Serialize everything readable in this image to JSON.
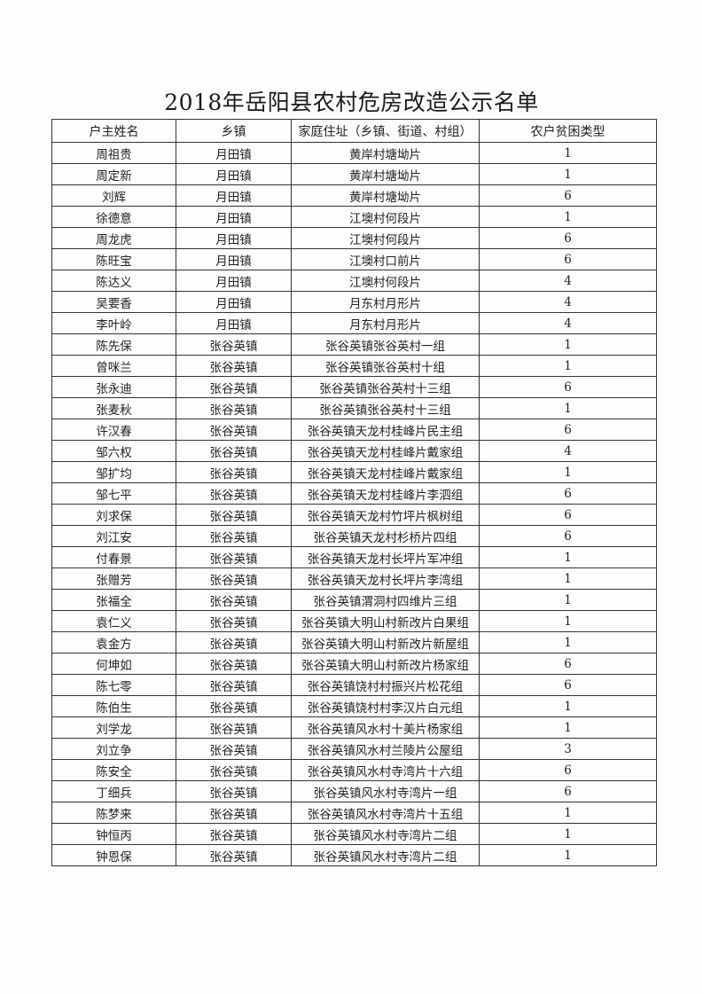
{
  "title": "2018年岳阳县农村危房改造公示名单",
  "table": {
    "headers": [
      "户主姓名",
      "乡镇",
      "家庭住址（乡镇、街道、村组）",
      "农户贫困类型"
    ],
    "rows": [
      [
        "周祖贵",
        "月田镇",
        "黄岸村塘坳片",
        "1"
      ],
      [
        "周定新",
        "月田镇",
        "黄岸村塘坳片",
        "1"
      ],
      [
        "刘辉",
        "月田镇",
        "黄岸村塘坳片",
        "6"
      ],
      [
        "徐德意",
        "月田镇",
        "江墺村何段片",
        "1"
      ],
      [
        "周龙虎",
        "月田镇",
        "江墺村何段片",
        "6"
      ],
      [
        "陈旺宝",
        "月田镇",
        "江墺村口前片",
        "6"
      ],
      [
        "陈达义",
        "月田镇",
        "江墺村何段片",
        "4"
      ],
      [
        "吴要香",
        "月田镇",
        "月东村月形片",
        "4"
      ],
      [
        "李叶岭",
        "月田镇",
        "月东村月形片",
        "4"
      ],
      [
        "陈先保",
        "张谷英镇",
        "张谷英镇张谷英村一组",
        "1"
      ],
      [
        "曾咪兰",
        "张谷英镇",
        "张谷英镇张谷英村十组",
        "1"
      ],
      [
        "张永迪",
        "张谷英镇",
        "张谷英镇张谷英村十三组",
        "6"
      ],
      [
        "张麦秋",
        "张谷英镇",
        "张谷英镇张谷英村十三组",
        "1"
      ],
      [
        "许汉春",
        "张谷英镇",
        "张谷英镇天龙村桂峰片民主组",
        "6"
      ],
      [
        "邹六权",
        "张谷英镇",
        "张谷英镇天龙村桂峰片戴家组",
        "4"
      ],
      [
        "邹扩均",
        "张谷英镇",
        "张谷英镇天龙村桂峰片戴家组",
        "1"
      ],
      [
        "邹七平",
        "张谷英镇",
        "张谷英镇天龙村桂峰片李泗组",
        "6"
      ],
      [
        "刘求保",
        "张谷英镇",
        "张谷英镇天龙村竹坪片枫树组",
        "6"
      ],
      [
        "刘江安",
        "张谷英镇",
        "张谷英镇天龙村杉桥片四组",
        "6"
      ],
      [
        "付春景",
        "张谷英镇",
        "张谷英镇天龙村长坪片军冲组",
        "1"
      ],
      [
        "张赠芳",
        "张谷英镇",
        "张谷英镇天龙村长坪片李湾组",
        "1"
      ],
      [
        "张福全",
        "张谷英镇",
        "张谷英镇渭洞村四维片三组",
        "1"
      ],
      [
        "袁仁义",
        "张谷英镇",
        "张谷英镇大明山村新改片白果组",
        "1"
      ],
      [
        "袁金方",
        "张谷英镇",
        "张谷英镇大明山村新改片新屋组",
        "1"
      ],
      [
        "何坤如",
        "张谷英镇",
        "张谷英镇大明山村新改片杨家组",
        "6"
      ],
      [
        "陈七零",
        "张谷英镇",
        "张谷英镇饶村村振兴片松花组",
        "6"
      ],
      [
        "陈伯生",
        "张谷英镇",
        "张谷英镇饶村村李汉片白元组",
        "1"
      ],
      [
        "刘学龙",
        "张谷英镇",
        "张谷英镇风水村十美片杨家组",
        "1"
      ],
      [
        "刘立争",
        "张谷英镇",
        "张谷英镇风水村兰陵片公屋组",
        "3"
      ],
      [
        "陈安全",
        "张谷英镇",
        "张谷英镇风水村寺湾片十六组",
        "6"
      ],
      [
        "丁细兵",
        "张谷英镇",
        "张谷英镇风水村寺湾片一组",
        "6"
      ],
      [
        "陈梦来",
        "张谷英镇",
        "张谷英镇风水村寺湾片十五组",
        "1"
      ],
      [
        "钟恒丙",
        "张谷英镇",
        "张谷英镇风水村寺湾片二组",
        "1"
      ],
      [
        "钟恩保",
        "张谷英镇",
        "张谷英镇风水村寺湾片二组",
        "1"
      ]
    ]
  }
}
